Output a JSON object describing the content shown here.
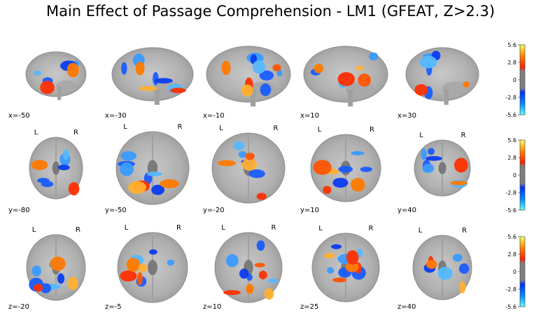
{
  "title": "Main Effect of Passage Comprehension - LM1 (GFEAT, Z>2.3)",
  "rows": [
    {
      "view": "sagittal",
      "orientation": [
        "",
        ""
      ],
      "slices": [
        "x=-50",
        "x=-30",
        "x=-10",
        "x=10",
        "x=30"
      ]
    },
    {
      "view": "coronal",
      "orientation": [
        "L",
        "R"
      ],
      "slices": [
        "y=-80",
        "y=-50",
        "y=-20",
        "y=10",
        "y=40"
      ]
    },
    {
      "view": "axial",
      "orientation": [
        "L",
        "R"
      ],
      "slices": [
        "z=-20",
        "z=-5",
        "z=10",
        "z=25",
        "z=40"
      ]
    }
  ],
  "colorbar": {
    "ticks": [
      "5.6",
      "2.8",
      "0",
      "-2.8",
      "-5.6"
    ],
    "positive_colors": [
      "#ff0000",
      "#ff8c00",
      "#ffff66"
    ],
    "negative_colors": [
      "#0000ff",
      "#0090ff",
      "#66ffff"
    ],
    "neutral_color": "#808080"
  }
}
